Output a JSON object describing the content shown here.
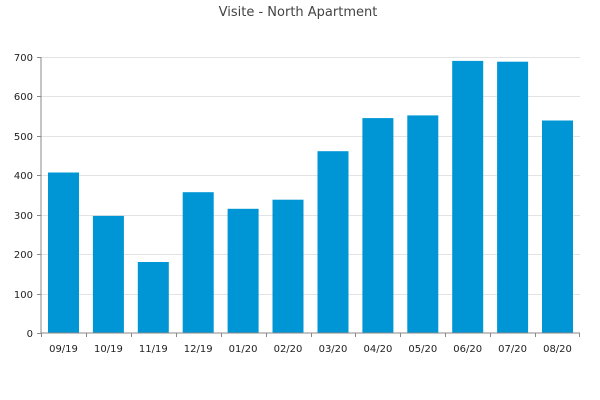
{
  "chart_data": {
    "type": "bar",
    "title": "Visite - North Apartment",
    "xlabel": "",
    "ylabel": "",
    "categories": [
      "09/19",
      "10/19",
      "11/19",
      "12/19",
      "01/20",
      "02/20",
      "03/20",
      "04/20",
      "05/20",
      "06/20",
      "07/20",
      "08/20"
    ],
    "values": [
      407,
      297,
      180,
      357,
      315,
      338,
      461,
      545,
      552,
      690,
      688,
      539
    ],
    "ylim": [
      0,
      700
    ],
    "yticks": [
      0,
      100,
      200,
      300,
      400,
      500,
      600,
      700
    ],
    "grid": true,
    "legend": "none",
    "bar_color": "#0095d5"
  }
}
